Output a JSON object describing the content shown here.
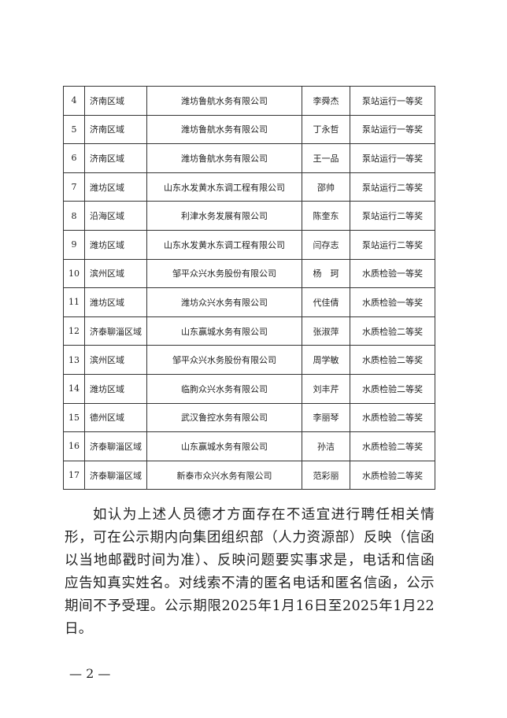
{
  "table": {
    "rows": [
      [
        "4",
        "济南区域",
        "潍坊鲁航水务有限公司",
        "李舜杰",
        "泵站运行一等奖"
      ],
      [
        "5",
        "济南区域",
        "潍坊鲁航水务有限公司",
        "丁永哲",
        "泵站运行一等奖"
      ],
      [
        "6",
        "济南区域",
        "潍坊鲁航水务有限公司",
        "王一品",
        "泵站运行一等奖"
      ],
      [
        "7",
        "潍坊区域",
        "山东水发黄水东调工程有限公司",
        "邵帅",
        "泵站运行二等奖"
      ],
      [
        "8",
        "沿海区域",
        "利津水务发展有限公司",
        "陈奎东",
        "泵站运行二等奖"
      ],
      [
        "9",
        "潍坊区域",
        "山东水发黄水东调工程有限公司",
        "闫存志",
        "泵站运行二等奖"
      ],
      [
        "10",
        "滨州区域",
        "邹平众兴水务股份有限公司",
        "杨　珂",
        "水质检验一等奖"
      ],
      [
        "11",
        "潍坊区域",
        "潍坊众兴水务有限公司",
        "代佳倩",
        "水质检验一等奖"
      ],
      [
        "12",
        "济泰聊淄区域",
        "山东赢城水务有限公司",
        "张淑萍",
        "水质检验二等奖"
      ],
      [
        "13",
        "滨州区域",
        "邹平众兴水务股份有限公司",
        "周学敏",
        "水质检验二等奖"
      ],
      [
        "14",
        "潍坊区域",
        "临朐众兴水务有限公司",
        "刘丰芹",
        "水质检验二等奖"
      ],
      [
        "15",
        "德州区域",
        "武汉鲁控水务有限公司",
        "李丽琴",
        "水质检验二等奖"
      ],
      [
        "16",
        "济泰聊淄区域",
        "山东赢城水务有限公司",
        "孙洁",
        "水质检验二等奖"
      ],
      [
        "17",
        "济泰聊淄区域",
        "新泰市众兴水务有限公司",
        "范彩丽",
        "水质检验二等奖"
      ]
    ]
  },
  "body": {
    "paragraph": "如认为上述人员德才方面存在不适宜进行聘任相关情形，可在公示期内向集团组织部（人力资源部）反映（信函以当地邮戳时间为准）、反映问题要实事求是，电话和信函应告知真实姓名。对线索不清的匿名电话和匿名信函，公示期间不予受理。公示期限2025年1月16日至2025年1月22日。"
  },
  "footer": {
    "page_number": "— 2 —"
  }
}
